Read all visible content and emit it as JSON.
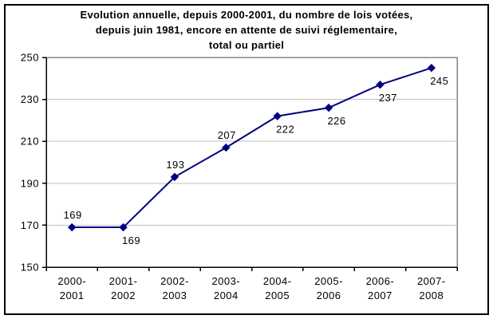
{
  "chart_data": {
    "type": "line",
    "title_lines": [
      "Evolution annuelle, depuis 2000-2001,  du nombre de lois votées,",
      "depuis juin 1981, encore en attente de  suivi réglementaire,",
      "total ou partiel"
    ],
    "categories": [
      "2000-2001",
      "2001-2002",
      "2002-2003",
      "2003-2004",
      "2004-2005",
      "2005-2006",
      "2006-2007",
      "2007-2008"
    ],
    "values": [
      169,
      169,
      193,
      207,
      222,
      226,
      237,
      245
    ],
    "label_positions": [
      "above",
      "below",
      "above",
      "above",
      "below",
      "below",
      "below",
      "below"
    ],
    "ylim": [
      150,
      250
    ],
    "yticks": [
      150,
      170,
      190,
      210,
      230,
      250
    ],
    "xlabel": "",
    "ylabel": "",
    "grid": "horizontal",
    "legend_position": "none",
    "marker": "diamond",
    "colors": {
      "line": "#000080",
      "marker": "#000080",
      "gridline": "#c0c0c0",
      "plot_border": "#848484",
      "axis": "#000000",
      "text": "#000000",
      "background": "#ffffff"
    }
  }
}
